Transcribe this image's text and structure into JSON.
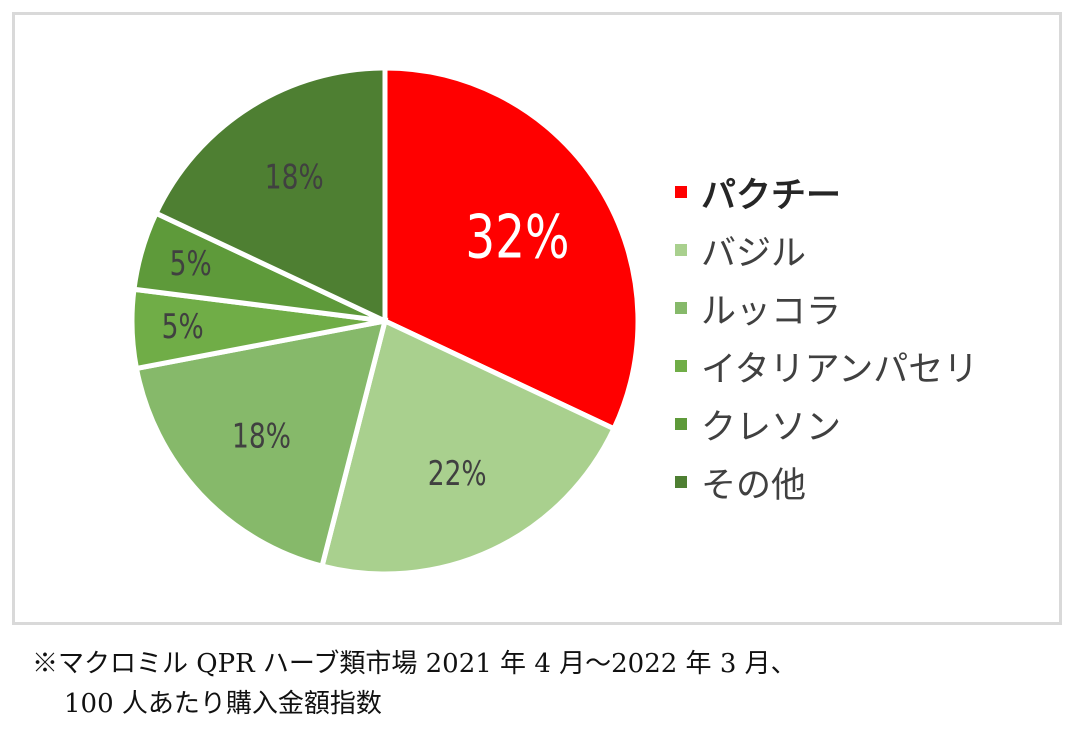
{
  "chart_data": {
    "type": "pie",
    "categories": [
      "パクチー",
      "バジル",
      "ルッコラ",
      "イタリアンパセリ",
      "クレソン",
      "その他"
    ],
    "values": [
      32,
      22,
      18,
      5,
      5,
      18
    ],
    "value_labels": [
      "32%",
      "22%",
      "18%",
      "5%",
      "5%",
      "18%"
    ],
    "colors": [
      "#ff0000",
      "#a9d08e",
      "#86b96a",
      "#70ad47",
      "#5e9a3a",
      "#4e7f32"
    ],
    "legend_position": "right",
    "legend_bold": [
      "パクチー"
    ]
  },
  "note": {
    "line1": "※マクロミル QPR ハーブ類市場 2021 年 4 月～2022 年 3 月、",
    "line2": "100 人あたり購入金額指数"
  }
}
